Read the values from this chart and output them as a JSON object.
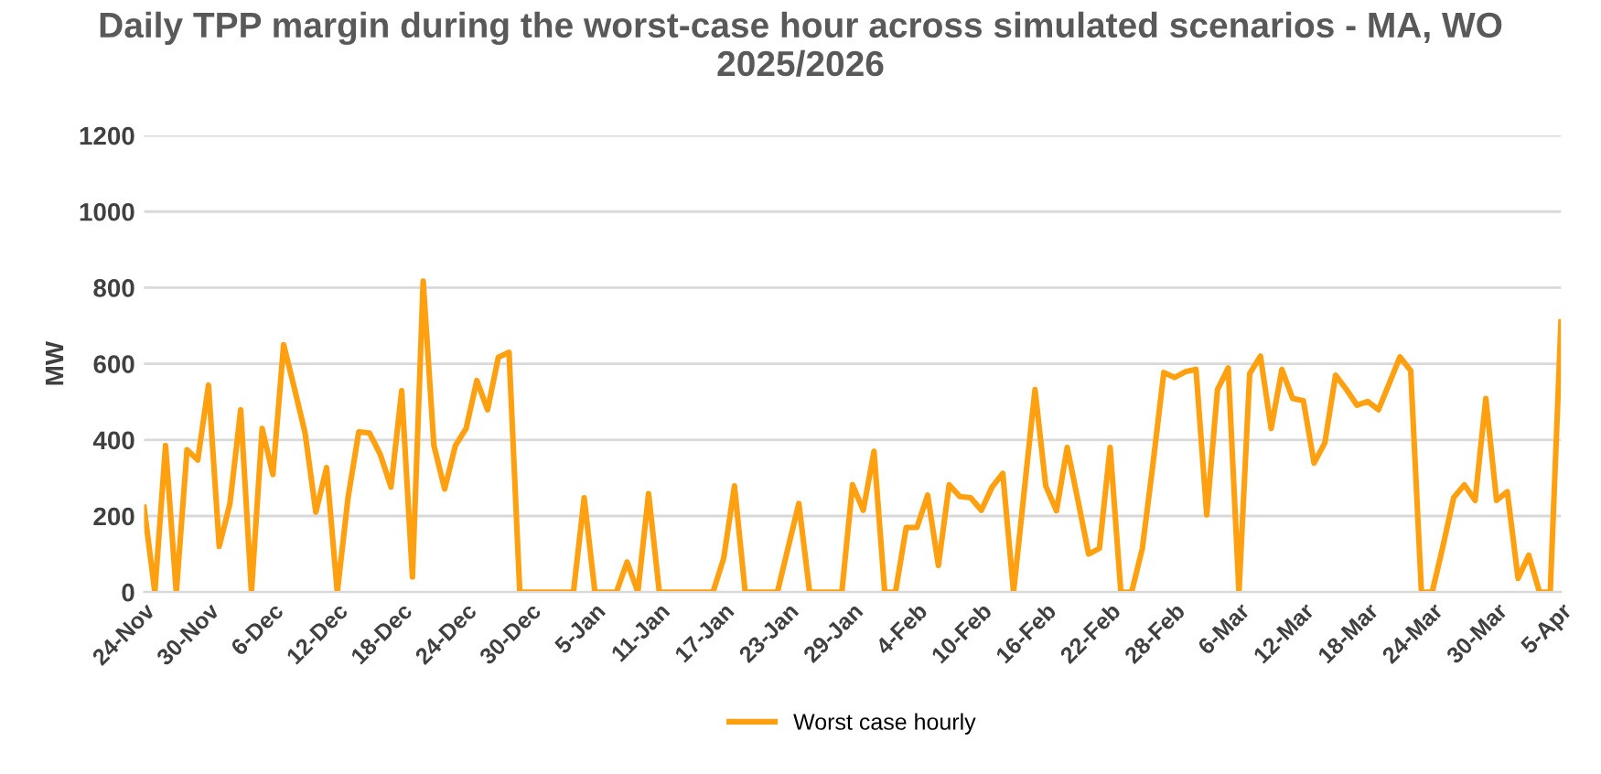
{
  "chart_data": {
    "type": "line",
    "title": "Daily TPP margin during the worst-case hour across simulated scenarios - MA, WO\n2025/2026",
    "ylabel": "MW",
    "categories": [
      "24-Nov",
      null,
      null,
      null,
      null,
      null,
      "30-Nov",
      null,
      null,
      null,
      null,
      null,
      "6-Dec",
      null,
      null,
      null,
      null,
      null,
      "12-Dec",
      null,
      null,
      null,
      null,
      null,
      "18-Dec",
      null,
      null,
      null,
      null,
      null,
      "24-Dec",
      null,
      null,
      null,
      null,
      null,
      "30-Dec",
      null,
      null,
      null,
      null,
      null,
      "5-Jan",
      null,
      null,
      null,
      null,
      null,
      "11-Jan",
      null,
      null,
      null,
      null,
      null,
      "17-Jan",
      null,
      null,
      null,
      null,
      null,
      "23-Jan",
      null,
      null,
      null,
      null,
      null,
      "29-Jan",
      null,
      null,
      null,
      null,
      null,
      "4-Feb",
      null,
      null,
      null,
      null,
      null,
      "10-Feb",
      null,
      null,
      null,
      null,
      null,
      "16-Feb",
      null,
      null,
      null,
      null,
      null,
      "22-Feb",
      null,
      null,
      null,
      null,
      null,
      "28-Feb",
      null,
      null,
      null,
      null,
      null,
      "6-Mar",
      null,
      null,
      null,
      null,
      null,
      "12-Mar",
      null,
      null,
      null,
      null,
      null,
      "18-Mar",
      null,
      null,
      null,
      null,
      null,
      "24-Mar",
      null,
      null,
      null,
      null,
      null,
      "30-Mar",
      null,
      null,
      null,
      null,
      null,
      "5-Apr"
    ],
    "series": [
      {
        "name": "Worst case hourly",
        "color": "#ffa010",
        "values": [
          223,
          0,
          385,
          0,
          374,
          347,
          544,
          120,
          233,
          479,
          0,
          430,
          309,
          650,
          536,
          418,
          210,
          327,
          0,
          248,
          421,
          418,
          362,
          276,
          529,
          40,
          817,
          385,
          271,
          385,
          430,
          556,
          479,
          617,
          630,
          0,
          0,
          0,
          0,
          0,
          0,
          248,
          0,
          0,
          0,
          79,
          0,
          259,
          0,
          0,
          0,
          0,
          0,
          0,
          89,
          279,
          0,
          0,
          0,
          0,
          117,
          233,
          0,
          0,
          0,
          0,
          282,
          215,
          370,
          0,
          0,
          170,
          170,
          255,
          70,
          282,
          251,
          248,
          215,
          276,
          312,
          0,
          267,
          532,
          279,
          214,
          380,
          241,
          100,
          115,
          380,
          0,
          0,
          115,
          339,
          577,
          564,
          579,
          585,
          203,
          532,
          589,
          0,
          574,
          620,
          430,
          585,
          509,
          503,
          339,
          392,
          570,
          533,
          491,
          501,
          479,
          548,
          618,
          582,
          0,
          0,
          120,
          248,
          282,
          241,
          509,
          241,
          264,
          36,
          97,
          0,
          0,
          710
        ]
      }
    ],
    "ylim": [
      0,
      1200
    ],
    "yticks": [
      0,
      200,
      400,
      600,
      800,
      1000,
      1200
    ],
    "grid": "y",
    "legend": "bottom",
    "marker": "none",
    "line_style": "solid"
  }
}
